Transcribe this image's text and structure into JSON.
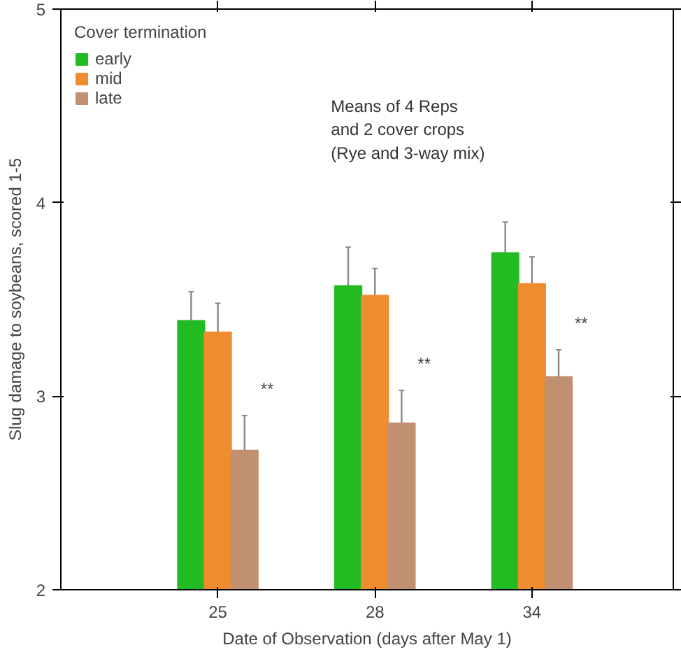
{
  "chart_data": {
    "type": "bar",
    "xlabel": "Date of Observation (days after May 1)",
    "ylabel": "Slug damage to soybeans, scored 1-5",
    "legend_title": "Cover termination",
    "categories": [
      "25",
      "28",
      "34"
    ],
    "series": [
      {
        "name": "early",
        "color": "#22bb22",
        "values": [
          3.39,
          3.57,
          3.74
        ],
        "errors": [
          0.15,
          0.2,
          0.16
        ]
      },
      {
        "name": "mid",
        "color": "#f08c30",
        "values": [
          3.33,
          3.52,
          3.58
        ],
        "errors": [
          0.15,
          0.14,
          0.14
        ]
      },
      {
        "name": "late",
        "color": "#c09070",
        "values": [
          2.72,
          2.86,
          3.1
        ],
        "errors": [
          0.18,
          0.17,
          0.14
        ]
      }
    ],
    "ylim": [
      2,
      5
    ],
    "yticks": [
      2,
      3,
      4,
      5
    ],
    "grid": false,
    "legend": "top left",
    "annotations": [
      "Means of 4 Reps\nand 2 cover crops\n(Rye and 3-way mix)",
      "**",
      "**",
      "**"
    ]
  }
}
